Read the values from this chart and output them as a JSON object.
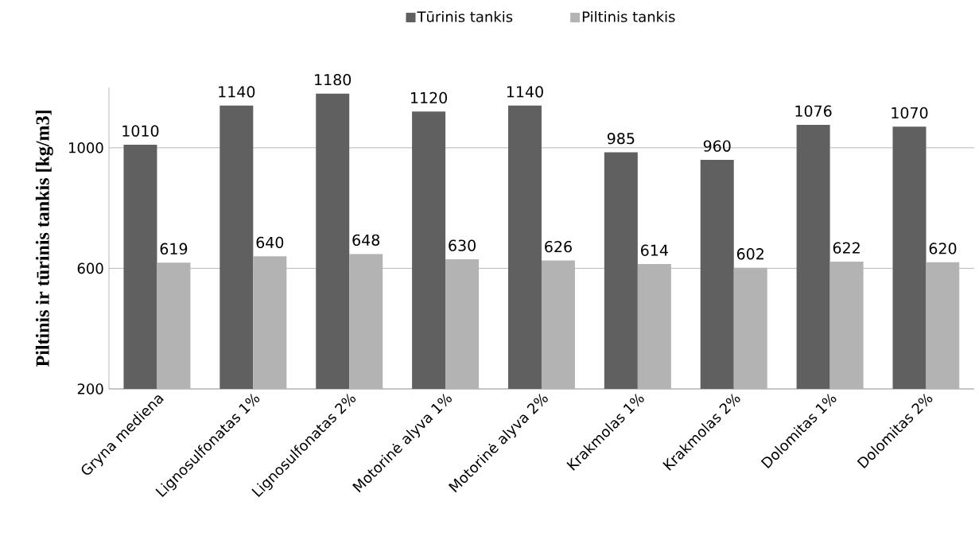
{
  "chart_data": {
    "type": "bar",
    "ylabel": "Piltinis ir tūrinis tankis [kg/m3]",
    "categories": [
      "Gryna mediena",
      "Lignosulfonatas 1%",
      "Lignosulfonatas 2%",
      "Motorinė alyva 1%",
      "Motorinė alyva 2%",
      "Krakmolas 1%",
      "Krakmolas 2%",
      "Dolomitas 1%",
      "Dolomitas 2%"
    ],
    "series": [
      {
        "name": "Tūrinis tankis",
        "color": "#606060",
        "values": [
          1010,
          1140,
          1180,
          1120,
          1140,
          985,
          960,
          1076,
          1070
        ]
      },
      {
        "name": "Piltinis tankis",
        "color": "#b3b3b3",
        "values": [
          619,
          640,
          648,
          630,
          626,
          614,
          602,
          622,
          620
        ]
      }
    ],
    "ylim": [
      200,
      1200
    ],
    "yticks": [
      200,
      600,
      1000
    ],
    "grid": "y",
    "legend": "top",
    "data_labels": true
  }
}
